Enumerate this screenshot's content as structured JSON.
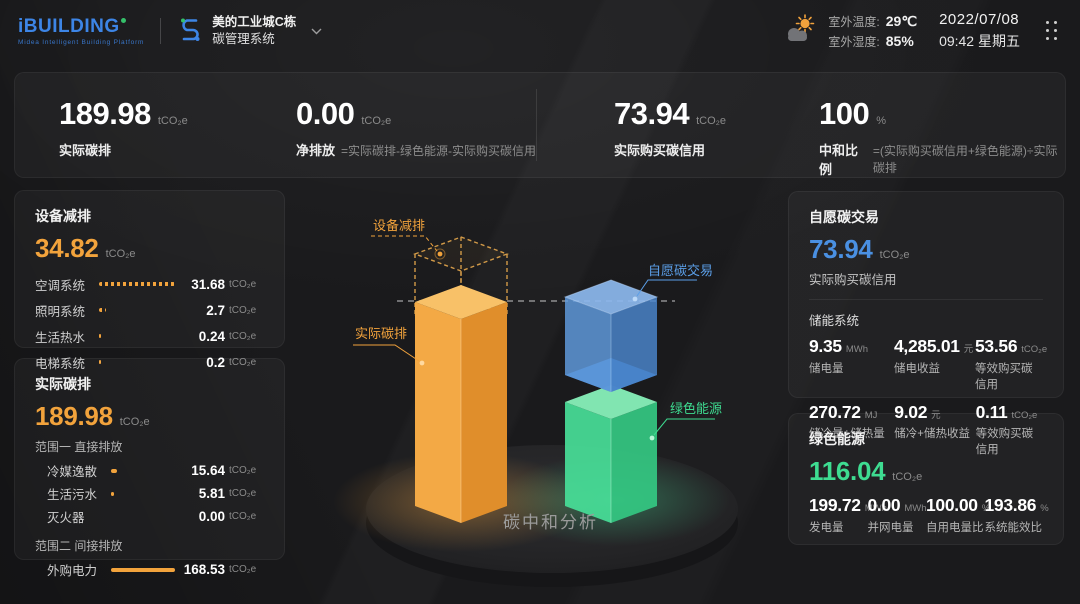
{
  "header": {
    "logo": {
      "title": "iBUILDING",
      "subtitle": "Midea  Intelligent  Building  Platform"
    },
    "building": {
      "line1": "美的工业城C栋",
      "line2": "碳管理系统"
    },
    "weather": {
      "temp_label": "室外温度:",
      "temp_value": "29℃",
      "hum_label": "室外湿度:",
      "hum_value": "85%"
    },
    "datetime": {
      "date": "2022/07/08",
      "time": "09:42 星期五"
    }
  },
  "kpis": [
    {
      "value": "189.98",
      "unit": "tCO₂e",
      "label": "实际碳排",
      "formula": ""
    },
    {
      "value": "0.00",
      "unit": "tCO₂e",
      "label": "净排放",
      "formula": "=实际碳排-绿色能源-实际购买碳信用"
    },
    {
      "value": "73.94",
      "unit": "tCO₂e",
      "label": "实际购买碳信用",
      "formula": ""
    },
    {
      "value": "100",
      "unit": "%",
      "label": "中和比例",
      "formula": "=(实际购买碳信用+绿色能源)÷实际碳排"
    }
  ],
  "device_reduction": {
    "title": "设备减排",
    "value": "34.82",
    "unit": "tCO₂e",
    "rows": [
      {
        "label": "空调系统",
        "value": "31.68",
        "unit": "tCO₂e",
        "bar_pct": 100
      },
      {
        "label": "照明系统",
        "value": "2.7",
        "unit": "tCO₂e",
        "bar_pct": 9
      },
      {
        "label": "生活热水",
        "value": "0.24",
        "unit": "tCO₂e",
        "bar_pct": 3
      },
      {
        "label": "电梯系统",
        "value": "0.2",
        "unit": "tCO₂e",
        "bar_pct": 3
      }
    ]
  },
  "actual_emission": {
    "title": "实际碳排",
    "value": "189.98",
    "unit": "tCO₂e",
    "scope1_title": "范围一 直接排放",
    "scope1_rows": [
      {
        "label": "冷媒逸散",
        "value": "15.64",
        "unit": "tCO₂e",
        "bar_pct": 10
      },
      {
        "label": "生活污水",
        "value": "5.81",
        "unit": "tCO₂e",
        "bar_pct": 4
      },
      {
        "label": "灭火器",
        "value": "0.00",
        "unit": "tCO₂e",
        "bar_pct": 0
      }
    ],
    "scope2_title": "范围二 间接排放",
    "scope2_rows": [
      {
        "label": "外购电力",
        "value": "168.53",
        "unit": "tCO₂e",
        "bar_pct": 100
      }
    ]
  },
  "carbon_trade": {
    "title": "自愿碳交易",
    "value": "73.94",
    "unit": "tCO₂e",
    "caption": "实际购买碳信用",
    "storage_title": "储能系统",
    "stats": [
      {
        "value": "9.35",
        "unit": "MWh",
        "label": "储电量"
      },
      {
        "value": "4,285.01",
        "unit": "元",
        "label": "储电收益"
      },
      {
        "value": "53.56",
        "unit": "tCO₂e",
        "label": "等效购买碳信用"
      },
      {
        "value": "270.72",
        "unit": "MJ",
        "label": "储冷量+储热量"
      },
      {
        "value": "9.02",
        "unit": "元",
        "label": "储冷+储热收益"
      },
      {
        "value": "0.11",
        "unit": "tCO₂e",
        "label": "等效购买碳信用"
      }
    ]
  },
  "green_energy": {
    "title": "绿色能源",
    "value": "116.04",
    "unit": "tCO₂e",
    "stats": [
      {
        "value": "199.72",
        "unit": "MWh",
        "label": "发电量"
      },
      {
        "value": "0.00",
        "unit": "MWh",
        "label": "并网电量"
      },
      {
        "value": "100.00",
        "unit": "%",
        "label": "自用电量比"
      },
      {
        "value": "193.86",
        "unit": "%",
        "label": "系统能效比"
      }
    ]
  },
  "chart": {
    "caption": "碳中和分析",
    "labels": {
      "device": "设备减排",
      "actual": "实际碳排",
      "trade": "自愿碳交易",
      "green": "绿色能源"
    }
  },
  "chart_data": {
    "type": "bar",
    "title": "碳中和分析",
    "categories": [
      "实际碳排",
      "设备减排",
      "自愿碳交易",
      "绿色能源"
    ],
    "values": [
      189.98,
      34.82,
      73.94,
      116.04
    ],
    "unit": "tCO₂e",
    "legend_position": "inline-labels",
    "style": "3D柱体: 橙色柱=实际碳排, 其顶部虚线框=设备减排, 蓝色半透明块=自愿碳交易, 叠于绿色柱=绿色能源之上"
  },
  "colors": {
    "accent_orange": "#F2A33C",
    "accent_blue": "#4A90E2",
    "accent_green": "#3EDC91",
    "panel_bg": "#232326",
    "background": "#1A1A1C"
  }
}
